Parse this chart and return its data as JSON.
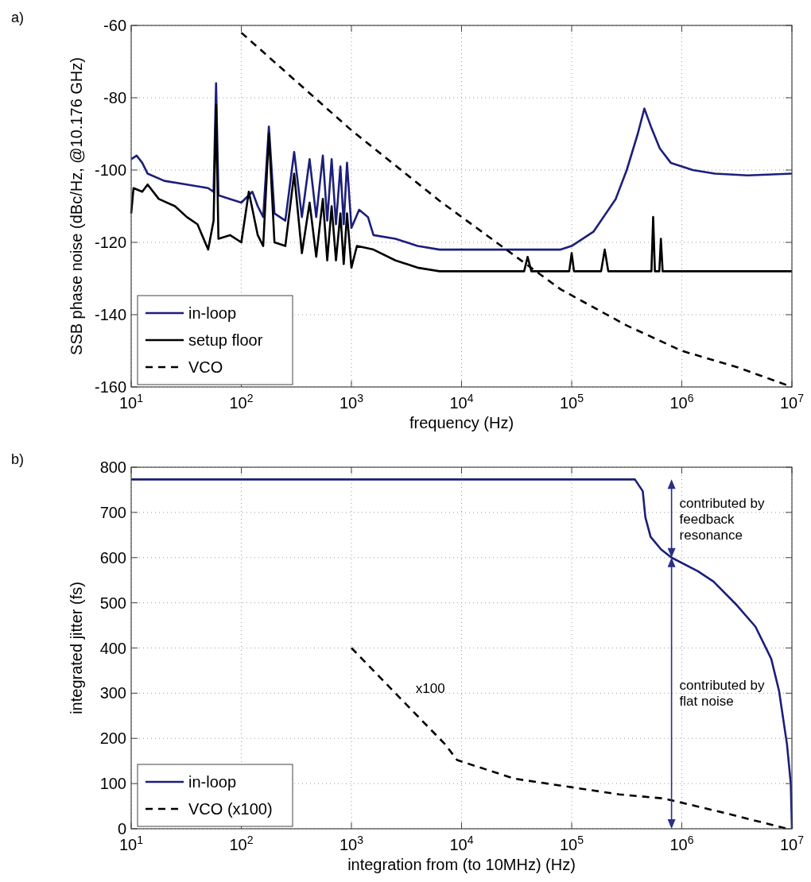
{
  "chart_data": [
    {
      "type": "line",
      "title": "a)",
      "xlabel": "frequency (Hz)",
      "ylabel": "SSB phase noise (dBc/Hz, @10.176 GHz)",
      "log": "x",
      "grid": true,
      "legend": "bottom left",
      "xlim": [
        10,
        10000000
      ],
      "ylim": [
        -160,
        -60
      ],
      "xticks": [
        {
          "value": 10,
          "label": "10$^{1}$"
        },
        {
          "value": 100,
          "label": "10$^{2}$"
        },
        {
          "value": 1000,
          "label": "10$^{3}$"
        },
        {
          "value": 10000,
          "label": "10$^{4}$"
        },
        {
          "value": 100000,
          "label": "10$^{5}$"
        },
        {
          "value": 1000000,
          "label": "10$^{6}$"
        },
        {
          "value": 10000000,
          "label": "10$^{7}$"
        }
      ],
      "yticks": [
        -160,
        -140,
        -120,
        -100,
        -80,
        -60
      ],
      "series": [
        {
          "name": "in-loop",
          "color": "#1c1f7a",
          "line_style": "solid",
          "x": [
            10,
            11.2,
            12.6,
            14.1,
            20,
            32,
            50,
            56,
            59,
            62,
            79,
            100,
            126,
            141,
            158,
            178,
            200,
            251,
            302,
            355,
            417,
            479,
            550,
            603,
            661,
            724,
            794,
            851,
            912,
            1000,
            1175,
            1413,
            1585,
            2512,
            3981,
            6310,
            10000,
            31623,
            79433,
            100000,
            158489,
            251189,
            316228,
            398107,
            457088,
            524807,
            630957,
            794328,
            1258925,
            1995262,
            3981072,
            10000000
          ],
          "values": [
            -97,
            -96,
            -98,
            -101,
            -103,
            -104,
            -105,
            -106,
            -76,
            -107,
            -108,
            -109,
            -106,
            -110,
            -113,
            -88,
            -112,
            -114,
            -95,
            -113,
            -97,
            -113,
            -96,
            -114,
            -97,
            -115,
            -99,
            -115,
            -98,
            -116,
            -111,
            -113,
            -118,
            -119,
            -121,
            -122,
            -122,
            -122,
            -122,
            -121,
            -117,
            -108,
            -100,
            -90,
            -83,
            -88,
            -94,
            -98,
            -100,
            -101,
            -101.5,
            -101
          ]
        },
        {
          "name": "setup floor",
          "color": "#000000",
          "line_style": "solid",
          "x": [
            10,
            10.5,
            12.6,
            14.1,
            17.8,
            25,
            32,
            40,
            50,
            56,
            59,
            62,
            79,
            100,
            117,
            141,
            158,
            178,
            200,
            251,
            302,
            355,
            417,
            479,
            550,
            603,
            661,
            724,
            794,
            851,
            912,
            1000,
            1122,
            1585,
            2512,
            3981,
            6310,
            10000,
            37000,
            39811,
            43000,
            95000,
            100000,
            105000,
            185000,
            199526,
            215000,
            530000,
            549541,
            570000,
            625000,
            645654,
            670000,
            10000000
          ],
          "values": [
            -112,
            -105,
            -106,
            -104,
            -108,
            -110,
            -113,
            -115,
            -122,
            -114,
            -82,
            -119,
            -118,
            -120,
            -106,
            -118,
            -121,
            -90,
            -120,
            -121,
            -101,
            -123,
            -109,
            -124,
            -108,
            -125,
            -110,
            -125,
            -112,
            -126,
            -112,
            -127,
            -121,
            -122,
            -125,
            -127,
            -128,
            -128,
            -128,
            -124,
            -128,
            -128,
            -123,
            -128,
            -128,
            -122,
            -128,
            -128,
            -113,
            -128,
            -128,
            -119,
            -128,
            -128
          ]
        },
        {
          "name": "VCO",
          "color": "#000000",
          "line_style": "dashed",
          "x": [
            100,
            1000,
            6310,
            79433,
            316228,
            1000000,
            3162278,
            10000000
          ],
          "values": [
            -62,
            -89,
            -108.5,
            -133,
            -143,
            -150,
            -154.5,
            -160
          ]
        }
      ]
    },
    {
      "type": "line",
      "title": "b)",
      "xlabel": "integration from (to 10MHz) (Hz)",
      "ylabel": "integrated jitter (fs)",
      "log": "x",
      "grid": true,
      "legend": "bottom left",
      "xlim": [
        10,
        10000000
      ],
      "ylim": [
        0,
        800
      ],
      "xticks": [
        {
          "value": 10,
          "label": "10$^{1}$"
        },
        {
          "value": 100,
          "label": "10$^{2}$"
        },
        {
          "value": 1000,
          "label": "10$^{3}$"
        },
        {
          "value": 10000,
          "label": "10$^{4}$"
        },
        {
          "value": 100000,
          "label": "10$^{5}$"
        },
        {
          "value": 1000000,
          "label": "10$^{6}$"
        },
        {
          "value": 10000000,
          "label": "10$^{7}$"
        }
      ],
      "yticks": [
        0,
        100,
        200,
        300,
        400,
        500,
        600,
        700,
        800
      ],
      "series": [
        {
          "name": "in-loop",
          "color": "#1c1f7a",
          "line_style": "solid",
          "x": [
            10,
            375000,
            442000,
            467000,
            521000,
            649000,
            807000,
            1400000,
            1940000,
            3180000,
            4670000,
            6490000,
            7640000,
            9020000,
            9770000,
            10000000
          ],
          "values": [
            773,
            773,
            747,
            689,
            646,
            618,
            600,
            570,
            547,
            494,
            447,
            376,
            305,
            187,
            99,
            0
          ]
        },
        {
          "name": "VCO (x100)",
          "color": "#000000",
          "line_style": "dashed",
          "x": [
            1000,
            7080,
            9120,
            30000,
            270000,
            690000,
            2450000,
            9100000
          ],
          "values": [
            400,
            187,
            152,
            111,
            76,
            67,
            35,
            0
          ]
        }
      ],
      "annotations": [
        "x100",
        {
          "text": "contributed by feedback resonance",
          "x": 807000,
          "y": 600
        },
        "contributed by flat noise"
      ]
    }
  ]
}
